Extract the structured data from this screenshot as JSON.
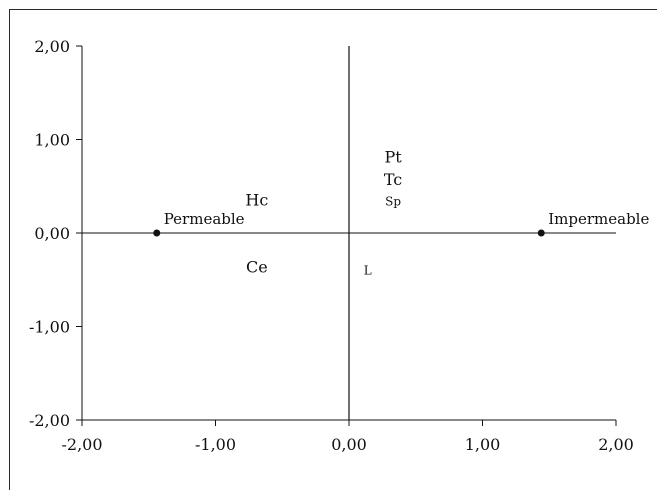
{
  "chart_data": {
    "type": "scatter",
    "title": "",
    "xlabel": "",
    "ylabel": "",
    "xlim": [
      -2,
      2
    ],
    "ylim": [
      -2,
      2
    ],
    "xticks": [
      "-2,00",
      "-1,00",
      "0,00",
      "1,00",
      "2,00"
    ],
    "yticks": [
      "2,00",
      "1,00",
      "0,00",
      "-1,00",
      "-2,00"
    ],
    "grid": false,
    "legend": "none",
    "points": [
      {
        "label": "Permeable",
        "x": -1.44,
        "y": 0.0,
        "marker": true
      },
      {
        "label": "Impermeable",
        "x": 1.44,
        "y": 0.0,
        "marker": true
      }
    ],
    "annotations": [
      {
        "text": "Pt",
        "x": 0.33,
        "y": 0.82
      },
      {
        "text": "Tc",
        "x": 0.33,
        "y": 0.58
      },
      {
        "text": "Sp",
        "x": 0.33,
        "y": 0.36
      },
      {
        "text": "Hc",
        "x": -0.69,
        "y": 0.36
      },
      {
        "text": "Ce",
        "x": -0.69,
        "y": -0.36
      },
      {
        "text": "L",
        "x": 0.14,
        "y": -0.38
      }
    ]
  }
}
